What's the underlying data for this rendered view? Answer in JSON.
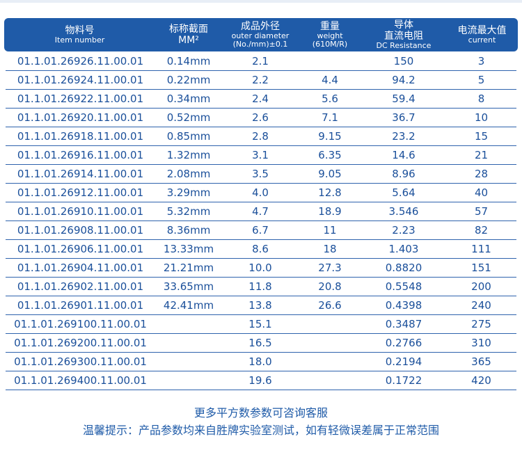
{
  "header": [
    {
      "zh": "物料号",
      "en": "Item number"
    },
    {
      "zh": "标称截面",
      "en": "MM²"
    },
    {
      "zh": "成品外径",
      "en": "outer diameter",
      "en2": "(No./mm)±0.1"
    },
    {
      "zh": "重量",
      "en": "weight",
      "en2": "(610M/R)"
    },
    {
      "zh": "导体",
      "zh2": "直流电阻",
      "en": "DC Resistance"
    },
    {
      "zh": "电流最大值",
      "en": "current"
    }
  ],
  "rows": [
    [
      "01.1.01.26926.11.00.01",
      "0.14mm",
      "2.1",
      "",
      "150",
      "3"
    ],
    [
      "01.1.01.26924.11.00.01",
      "0.22mm",
      "2.2",
      "4.4",
      "94.2",
      "5"
    ],
    [
      "01.1.01.26922.11.00.01",
      "0.34mm",
      "2.4",
      "5.6",
      "59.4",
      "8"
    ],
    [
      "01.1.01.26920.11.00.01",
      "0.52mm",
      "2.6",
      "7.1",
      "36.7",
      "10"
    ],
    [
      "01.1.01.26918.11.00.01",
      "0.85mm",
      "2.8",
      "9.15",
      "23.2",
      "15"
    ],
    [
      "01.1.01.26916.11.00.01",
      "1.32mm",
      "3.1",
      "6.35",
      "14.6",
      "21"
    ],
    [
      "01.1.01.26914.11.00.01",
      "2.08mm",
      "3.5",
      "9.05",
      "8.96",
      "28"
    ],
    [
      "01.1.01.26912.11.00.01",
      "3.29mm",
      "4.0",
      "12.8",
      "5.64",
      "40"
    ],
    [
      "01.1.01.26910.11.00.01",
      "5.32mm",
      "4.7",
      "18.9",
      "3.546",
      "57"
    ],
    [
      "01.1.01.26908.11.00.01",
      "8.36mm",
      "6.7",
      "11",
      "2.23",
      "82"
    ],
    [
      "01.1.01.26906.11.00.01",
      "13.33mm",
      "8.6",
      "18",
      "1.403",
      "111"
    ],
    [
      "01.1.01.26904.11.00.01",
      "21.21mm",
      "10.0",
      "27.3",
      "0.8820",
      "151"
    ],
    [
      "01.1.01.26902.11.00.01",
      "33.65mm",
      "11.8",
      "20.8",
      "0.5548",
      "200"
    ],
    [
      "01.1.01.26901.11.00.01",
      "42.41mm",
      "13.8",
      "26.6",
      "0.4398",
      "240"
    ],
    [
      "01.1.01.269100.11.00.01",
      "",
      "15.1",
      "",
      "0.3487",
      "275"
    ],
    [
      "01.1.01.269200.11.00.01",
      "",
      "16.5",
      "",
      "0.2766",
      "310"
    ],
    [
      "01.1.01.269300.11.00.01",
      "",
      "18.0",
      "",
      "0.2194",
      "365"
    ],
    [
      "01.1.01.269400.11.00.01",
      "",
      "19.6",
      "",
      "0.1722",
      "420"
    ]
  ],
  "notes": {
    "line1": "更多平方数参数可咨询客服",
    "line2": "温馨提示：产品参数均来自胜牌实验室测试，如有轻微误差属于正常范围"
  }
}
